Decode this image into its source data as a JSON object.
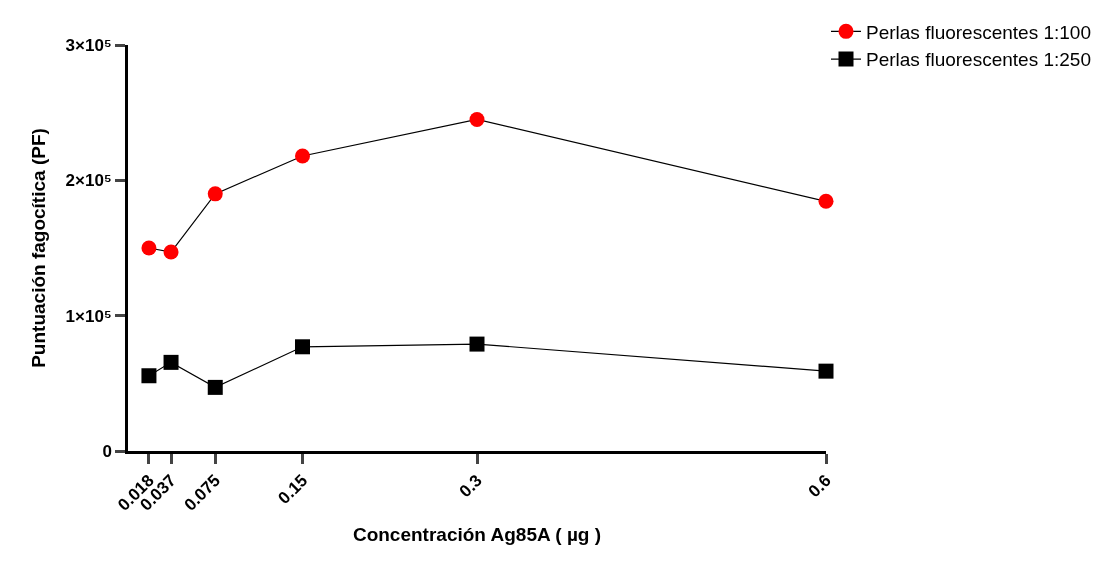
{
  "chart_data": {
    "type": "line",
    "xlabel": "Concentración Ag85A ( µg )",
    "ylabel": "Puntuación fagocítica (PF)",
    "x": [
      0.018,
      0.037,
      0.075,
      0.15,
      0.3,
      0.6
    ],
    "series": [
      {
        "name": "Perlas fluorescentes 1:100",
        "color": "#ff0000",
        "marker": "circle",
        "values": [
          150000,
          147000,
          190000,
          218000,
          245000,
          184500
        ]
      },
      {
        "name": "Perlas fluorescentes 1:250",
        "color": "#000000",
        "marker": "square",
        "values": [
          55600,
          65500,
          47000,
          77000,
          79000,
          59000
        ]
      }
    ],
    "xlim": [
      0,
      0.6
    ],
    "xticks": [
      0.018,
      0.037,
      0.075,
      0.15,
      0.3,
      0.6
    ],
    "ylim": [
      0,
      300000
    ],
    "yticks": [
      {
        "value": 0,
        "label": "0"
      },
      {
        "value": 100000,
        "label": "1×10⁵"
      },
      {
        "value": 200000,
        "label": "2×10⁵"
      },
      {
        "value": 300000,
        "label": "3×10⁵"
      }
    ],
    "legend": "top right"
  }
}
